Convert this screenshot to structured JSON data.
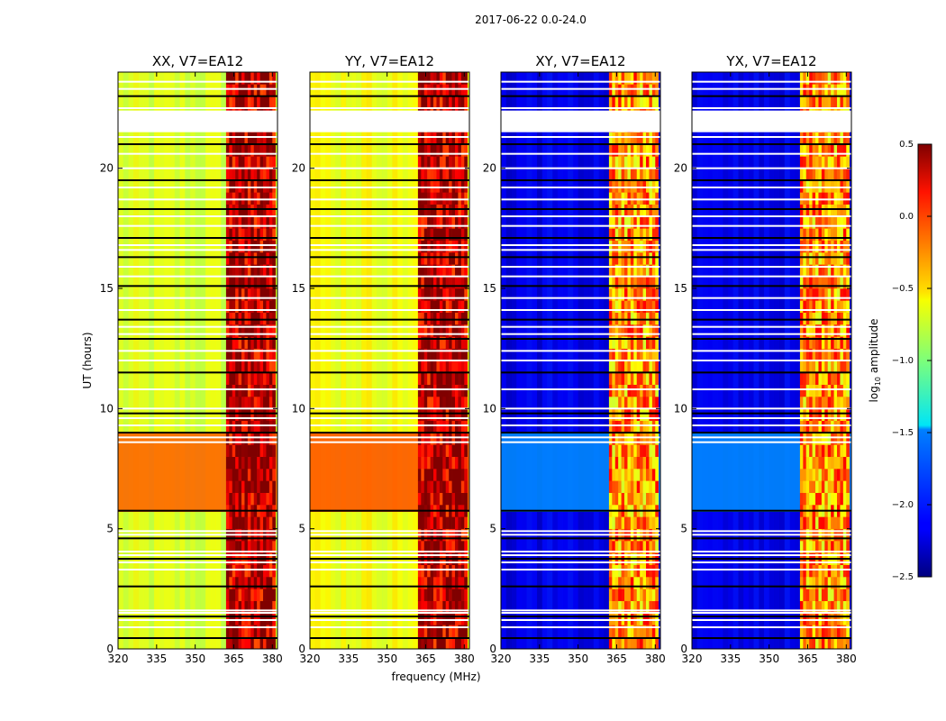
{
  "figure": {
    "suptitle": "2017-06-22 0.0-24.0",
    "shared_xlabel": "frequency (MHz)",
    "shared_ylabel": "UT (hours)"
  },
  "chart_data": [
    {
      "type": "heatmap",
      "title": "XX, V7=EA12",
      "xlabel": "",
      "ylabel": "UT (hours)",
      "xlim": [
        320,
        382
      ],
      "ylim": [
        0,
        24
      ],
      "xticks": [
        320,
        335,
        350,
        365,
        380
      ],
      "yticks": [
        0,
        5,
        10,
        15,
        20
      ],
      "background_log10_amplitude": -0.75,
      "background_feature": {
        "ut_range": [
          5.7,
          9.0
        ],
        "log10_amplitude": -0.15
      },
      "rfi_band_mhz": [
        362,
        380.5
      ],
      "rfi_log10_amplitude": 0.25,
      "flagged_gap_ut": [
        21.5,
        22.4
      ]
    },
    {
      "type": "heatmap",
      "title": "YY, V7=EA12",
      "xlabel": "frequency (MHz)",
      "ylabel": "",
      "xlim": [
        320,
        382
      ],
      "ylim": [
        0,
        24
      ],
      "xticks": [
        320,
        335,
        350,
        365,
        380
      ],
      "yticks": [
        0,
        5,
        10,
        15,
        20
      ],
      "background_log10_amplitude": -0.65,
      "background_feature": {
        "ut_range": [
          5.7,
          9.0
        ],
        "log10_amplitude": -0.1
      },
      "rfi_band_mhz": [
        362,
        380.5
      ],
      "rfi_log10_amplitude": 0.25,
      "flagged_gap_ut": [
        21.5,
        22.4
      ]
    },
    {
      "type": "heatmap",
      "title": "XY, V7=EA12",
      "xlabel": "",
      "ylabel": "",
      "xlim": [
        320,
        382
      ],
      "ylim": [
        0,
        24
      ],
      "xticks": [
        320,
        335,
        350,
        365,
        380
      ],
      "yticks": [
        0,
        5,
        10,
        15,
        20
      ],
      "background_log10_amplitude": -2.2,
      "background_feature": {
        "ut_range": [
          5.7,
          9.0
        ],
        "log10_amplitude": -1.7
      },
      "rfi_band_mhz": [
        362,
        380.5
      ],
      "rfi_log10_amplitude": -0.4,
      "flagged_gap_ut": [
        21.5,
        22.4
      ]
    },
    {
      "type": "heatmap",
      "title": "YX, V7=EA12",
      "xlabel": "",
      "ylabel": "",
      "xlim": [
        320,
        382
      ],
      "ylim": [
        0,
        24
      ],
      "xticks": [
        320,
        335,
        350,
        365,
        380
      ],
      "yticks": [
        0,
        5,
        10,
        15,
        20
      ],
      "background_log10_amplitude": -2.2,
      "background_feature": {
        "ut_range": [
          5.7,
          9.0
        ],
        "log10_amplitude": -1.7
      },
      "rfi_band_mhz": [
        362,
        380.5
      ],
      "rfi_log10_amplitude": -0.4,
      "flagged_gap_ut": [
        21.5,
        22.4
      ]
    }
  ],
  "colorbar": {
    "label_prefix": "log",
    "label_sub": "10",
    "label_suffix": " amplitude",
    "range": [
      -2.5,
      0.5
    ],
    "ticks": [
      "0.5",
      "0.0",
      "−0.5",
      "−1.0",
      "−1.5",
      "−2.0",
      "−2.5"
    ],
    "colormap": "jet"
  }
}
